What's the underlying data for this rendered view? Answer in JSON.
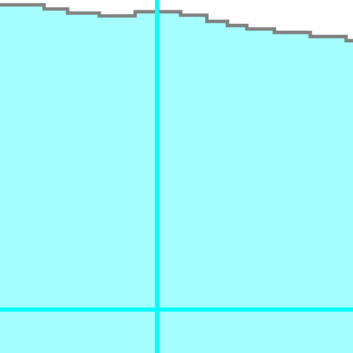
{
  "canvas": {
    "background_color": "#ffffff",
    "fill_color": "#a6ffff",
    "edge_color": "#808080",
    "guide_color": "#00ffff"
  },
  "guides": [
    {
      "orientation": "vertical"
    },
    {
      "orientation": "horizontal"
    }
  ]
}
